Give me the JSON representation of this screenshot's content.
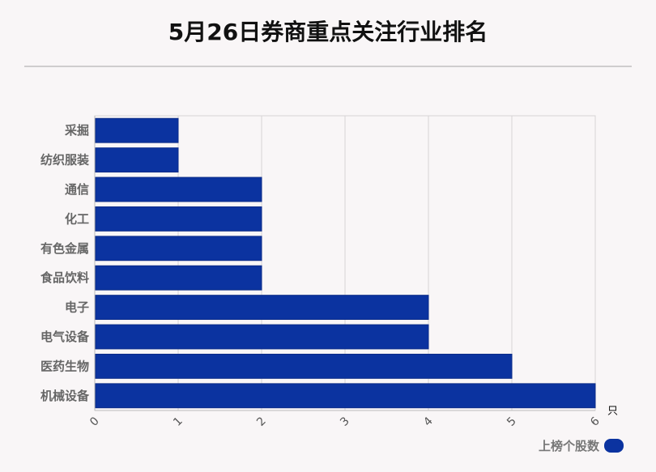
{
  "title": "5月26日券商重点关注行业排名",
  "chart_data": {
    "type": "bar",
    "orientation": "horizontal",
    "categories": [
      "采掘",
      "纺织服装",
      "通信",
      "化工",
      "有色金属",
      "食品饮料",
      "电子",
      "电气设备",
      "医药生物",
      "机械设备"
    ],
    "series": [
      {
        "name": "上榜个股数",
        "values": [
          1,
          1,
          2,
          2,
          2,
          2,
          4,
          4,
          5,
          6
        ]
      }
    ],
    "xlim": [
      0,
      6
    ],
    "x_ticks": [
      "0",
      "1",
      "2",
      "3",
      "4",
      "5",
      "6"
    ],
    "x_unit": "只",
    "grid": true,
    "legend_position": "bottom-right",
    "bar_color": "#0b33a0"
  }
}
